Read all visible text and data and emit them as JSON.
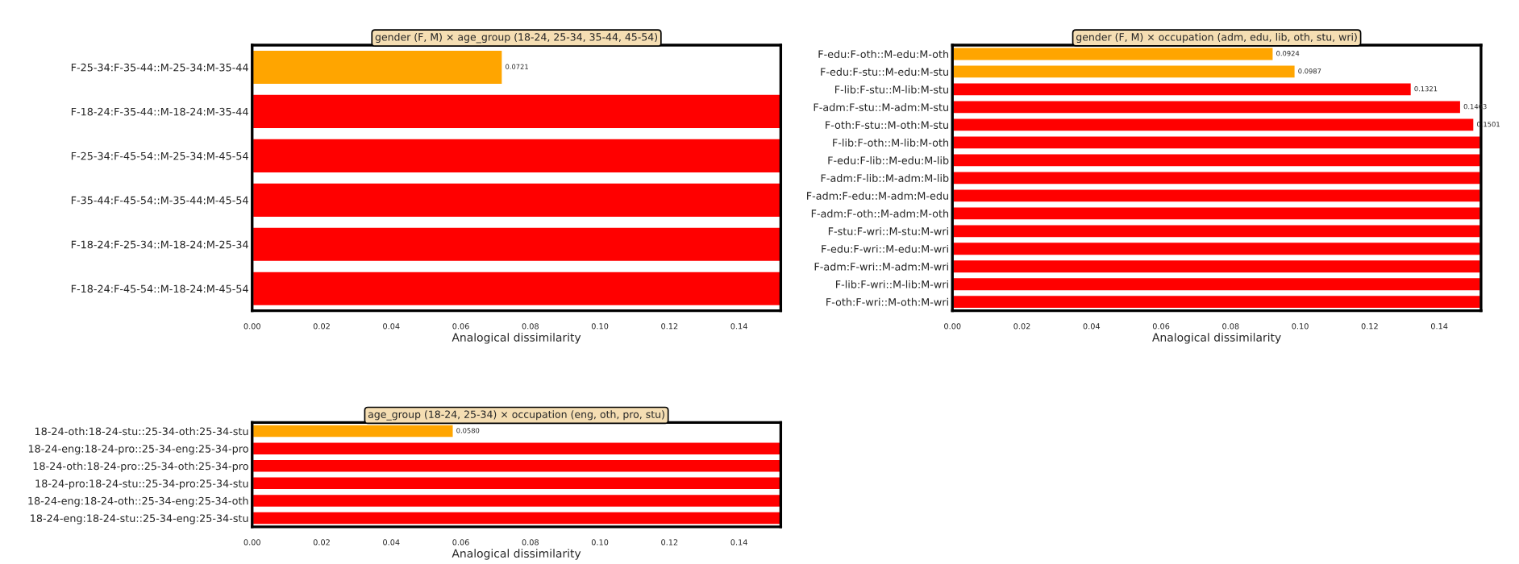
{
  "chart_data": [
    {
      "type": "bar",
      "orientation": "horizontal",
      "title": "gender (F, M) × age_group (18-24, 25-34, 35-44, 45-54)",
      "xlabel": "Analogical dissimilarity",
      "categories": [
        "F-25-34:F-35-44::M-25-34:M-35-44",
        "F-18-24:F-35-44::M-18-24:M-35-44",
        "F-25-34:F-45-54::M-25-34:M-45-54",
        "F-35-44:F-45-54::M-35-44:M-45-54",
        "F-18-24:F-25-34::M-18-24:M-25-34",
        "F-18-24:F-45-54::M-18-24:M-45-54"
      ],
      "values": [
        0.0721,
        0.152,
        0.152,
        0.152,
        0.152,
        0.152
      ],
      "colors": [
        "#ffa500",
        "#ff0000",
        "#ff0000",
        "#ff0000",
        "#ff0000",
        "#ff0000"
      ],
      "value_labels": [
        "0.0721",
        null,
        null,
        null,
        null,
        null
      ],
      "xlim": [
        0,
        0.152
      ],
      "xticks": [
        {
          "value": 0,
          "label": "0.00"
        },
        {
          "value": 0.02,
          "label": "0.02"
        },
        {
          "value": 0.04,
          "label": "0.04"
        },
        {
          "value": 0.06,
          "label": "0.06"
        },
        {
          "value": 0.08,
          "label": "0.08"
        },
        {
          "value": 0.1,
          "label": "0.10"
        },
        {
          "value": 0.12,
          "label": "0.12"
        },
        {
          "value": 0.14,
          "label": "0.14"
        }
      ]
    },
    {
      "type": "bar",
      "orientation": "horizontal",
      "title": "gender (F, M) × occupation (adm, edu, lib, oth, stu, wri)",
      "xlabel": "Analogical dissimilarity",
      "categories": [
        "F-edu:F-oth::M-edu:M-oth",
        "F-edu:F-stu::M-edu:M-stu",
        "F-lib:F-stu::M-lib:M-stu",
        "F-adm:F-stu::M-adm:M-stu",
        "F-oth:F-stu::M-oth:M-stu",
        "F-lib:F-oth::M-lib:M-oth",
        "F-edu:F-lib::M-edu:M-lib",
        "F-adm:F-lib::M-adm:M-lib",
        "F-adm:F-edu::M-adm:M-edu",
        "F-adm:F-oth::M-adm:M-oth",
        "F-stu:F-wri::M-stu:M-wri",
        "F-edu:F-wri::M-edu:M-wri",
        "F-adm:F-wri::M-adm:M-wri",
        "F-lib:F-wri::M-lib:M-wri",
        "F-oth:F-wri::M-oth:M-wri"
      ],
      "values": [
        0.0924,
        0.0987,
        0.1321,
        0.1463,
        0.1501,
        0.152,
        0.152,
        0.152,
        0.152,
        0.152,
        0.152,
        0.152,
        0.152,
        0.152,
        0.152
      ],
      "colors": [
        "#ffa500",
        "#ffa500",
        "#ff0000",
        "#ff0000",
        "#ff0000",
        "#ff0000",
        "#ff0000",
        "#ff0000",
        "#ff0000",
        "#ff0000",
        "#ff0000",
        "#ff0000",
        "#ff0000",
        "#ff0000",
        "#ff0000"
      ],
      "value_labels": [
        "0.0924",
        "0.0987",
        "0.1321",
        "0.1463",
        "0.1501",
        null,
        null,
        null,
        null,
        null,
        null,
        null,
        null,
        null,
        null
      ],
      "xlim": [
        0,
        0.152
      ],
      "xticks": [
        {
          "value": 0,
          "label": "0.00"
        },
        {
          "value": 0.02,
          "label": "0.02"
        },
        {
          "value": 0.04,
          "label": "0.04"
        },
        {
          "value": 0.06,
          "label": "0.06"
        },
        {
          "value": 0.08,
          "label": "0.08"
        },
        {
          "value": 0.1,
          "label": "0.10"
        },
        {
          "value": 0.12,
          "label": "0.12"
        },
        {
          "value": 0.14,
          "label": "0.14"
        }
      ]
    },
    {
      "type": "bar",
      "orientation": "horizontal",
      "title": "age_group (18-24, 25-34) × occupation (eng, oth, pro, stu)",
      "xlabel": "Analogical dissimilarity",
      "categories": [
        "18-24-oth:18-24-stu::25-34-oth:25-34-stu",
        "18-24-eng:18-24-pro::25-34-eng:25-34-pro",
        "18-24-oth:18-24-pro::25-34-oth:25-34-pro",
        "18-24-pro:18-24-stu::25-34-pro:25-34-stu",
        "18-24-eng:18-24-oth::25-34-eng:25-34-oth",
        "18-24-eng:18-24-stu::25-34-eng:25-34-stu"
      ],
      "values": [
        0.058,
        0.152,
        0.152,
        0.152,
        0.152,
        0.152
      ],
      "colors": [
        "#ffa500",
        "#ff0000",
        "#ff0000",
        "#ff0000",
        "#ff0000",
        "#ff0000"
      ],
      "value_labels": [
        "0.0580",
        null,
        null,
        null,
        null,
        null
      ],
      "xlim": [
        0,
        0.152
      ],
      "xticks": [
        {
          "value": 0,
          "label": "0.00"
        },
        {
          "value": 0.02,
          "label": "0.02"
        },
        {
          "value": 0.04,
          "label": "0.04"
        },
        {
          "value": 0.06,
          "label": "0.06"
        },
        {
          "value": 0.08,
          "label": "0.08"
        },
        {
          "value": 0.1,
          "label": "0.10"
        },
        {
          "value": 0.12,
          "label": "0.12"
        },
        {
          "value": 0.14,
          "label": "0.14"
        }
      ]
    }
  ]
}
